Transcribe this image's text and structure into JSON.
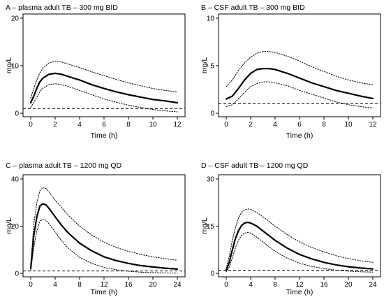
{
  "chart_data": [
    {
      "type": "line",
      "title": "A – plasma adult TB – 300 mg BID",
      "xlabel": "Time (h)",
      "ylabel": "mg/L",
      "xlim": [
        0,
        12
      ],
      "ylim": [
        0,
        20
      ],
      "xticks": [
        0,
        2,
        4,
        6,
        8,
        10,
        12
      ],
      "yticks": [
        0,
        10,
        20
      ],
      "reference_line": 1,
      "grid": false,
      "series": [
        {
          "style": "solid",
          "x": [
            0,
            0.25,
            0.5,
            0.75,
            1,
            1.5,
            2,
            2.5,
            3,
            4,
            5,
            6,
            7,
            8,
            9,
            10,
            11,
            12
          ],
          "values": [
            2.2,
            3.6,
            5.3,
            6.6,
            7.4,
            8.2,
            8.4,
            8.2,
            7.8,
            7.0,
            6.0,
            5.2,
            4.5,
            3.9,
            3.4,
            2.9,
            2.6,
            2.2
          ]
        },
        {
          "style": "dotted",
          "x": [
            0,
            0.25,
            0.5,
            0.75,
            1,
            1.5,
            2,
            2.5,
            3,
            4,
            5,
            6,
            7,
            8,
            9,
            10,
            11,
            12
          ],
          "values": [
            3.2,
            5.2,
            7.0,
            8.5,
            9.5,
            10.6,
            10.9,
            10.8,
            10.4,
            9.6,
            8.7,
            7.9,
            7.1,
            6.4,
            5.8,
            5.2,
            4.8,
            4.5
          ]
        },
        {
          "style": "dotted",
          "x": [
            0,
            0.25,
            0.5,
            0.75,
            1,
            1.5,
            2,
            2.5,
            3,
            4,
            5,
            6,
            7,
            8,
            9,
            10,
            11,
            12
          ],
          "values": [
            1.2,
            2.3,
            3.4,
            4.5,
            5.3,
            6.0,
            6.2,
            6.0,
            5.7,
            4.8,
            3.9,
            3.0,
            2.3,
            1.7,
            1.2,
            0.8,
            0.5,
            0.3
          ]
        }
      ]
    },
    {
      "type": "line",
      "title": "B – CSF adult TB – 300 mg BID",
      "xlabel": "Time (h)",
      "ylabel": "mg/L",
      "xlim": [
        0,
        12
      ],
      "ylim": [
        0,
        10
      ],
      "xticks": [
        0,
        2,
        4,
        6,
        8,
        10,
        12
      ],
      "yticks": [
        0,
        5,
        10
      ],
      "reference_line": 1,
      "grid": false,
      "series": [
        {
          "style": "solid",
          "x": [
            0,
            0.5,
            1,
            1.5,
            2,
            2.5,
            3,
            3.5,
            4,
            5,
            6,
            7,
            8,
            9,
            10,
            11,
            12
          ],
          "values": [
            1.5,
            1.8,
            2.6,
            3.5,
            4.2,
            4.6,
            4.7,
            4.7,
            4.6,
            4.2,
            3.7,
            3.2,
            2.8,
            2.4,
            2.1,
            1.8,
            1.55
          ]
        },
        {
          "style": "dotted",
          "x": [
            0,
            0.5,
            1,
            1.5,
            2,
            2.5,
            3,
            3.5,
            4,
            5,
            6,
            7,
            8,
            9,
            10,
            11,
            12
          ],
          "values": [
            2.8,
            3.5,
            4.5,
            5.3,
            5.9,
            6.3,
            6.5,
            6.5,
            6.4,
            6.0,
            5.5,
            4.9,
            4.4,
            3.9,
            3.5,
            3.2,
            3.0
          ]
        },
        {
          "style": "dotted",
          "x": [
            0,
            0.5,
            1,
            1.5,
            2,
            2.5,
            3,
            3.5,
            4,
            5,
            6,
            7,
            8,
            9,
            10,
            11,
            12
          ],
          "values": [
            0.7,
            0.9,
            1.5,
            2.2,
            2.8,
            3.1,
            3.3,
            3.3,
            3.2,
            2.9,
            2.4,
            2.0,
            1.6,
            1.2,
            0.9,
            0.7,
            0.55
          ]
        }
      ]
    },
    {
      "type": "line",
      "title": "C – plasma adult TB – 1200 mg QD",
      "xlabel": "Time (h)",
      "ylabel": "mg/L",
      "xlim": [
        0,
        24
      ],
      "ylim": [
        0,
        40
      ],
      "xticks": [
        0,
        4,
        8,
        12,
        16,
        20,
        24
      ],
      "yticks": [
        0,
        20,
        40
      ],
      "reference_line": 1,
      "grid": false,
      "series": [
        {
          "style": "solid",
          "x": [
            0,
            0.25,
            0.5,
            1,
            1.5,
            2,
            2.5,
            3,
            4,
            5,
            6,
            8,
            10,
            12,
            14,
            16,
            18,
            20,
            22,
            24
          ],
          "values": [
            2,
            9,
            16,
            24,
            28.5,
            29.5,
            29,
            27.5,
            24,
            20.5,
            17.5,
            12.8,
            9.5,
            7.0,
            5.4,
            4.2,
            3.3,
            2.7,
            2.2,
            1.8
          ]
        },
        {
          "style": "dotted",
          "x": [
            0,
            0.25,
            0.5,
            1,
            1.5,
            2,
            2.5,
            3,
            4,
            5,
            6,
            8,
            10,
            12,
            14,
            16,
            18,
            20,
            22,
            24
          ],
          "values": [
            3,
            12,
            21,
            30,
            35,
            36.3,
            36,
            34.5,
            31,
            28,
            25,
            20,
            16.2,
            13.2,
            11,
            9.3,
            8,
            7,
            6.2,
            5.5
          ]
        },
        {
          "style": "dotted",
          "x": [
            0,
            0.25,
            0.5,
            1,
            1.5,
            2,
            2.5,
            3,
            4,
            5,
            6,
            8,
            10,
            12,
            14,
            16,
            18,
            20,
            22,
            24
          ],
          "values": [
            1,
            6,
            11,
            18,
            22,
            23,
            22.5,
            21,
            17.5,
            14,
            11,
            6.8,
            4.2,
            2.5,
            1.5,
            0.9,
            0.5,
            0.3,
            0.2,
            0.1
          ]
        }
      ]
    },
    {
      "type": "line",
      "title": "D – CSF adult TB – 1200 mg QD",
      "xlabel": "Time (h)",
      "ylabel": "mg/L",
      "xlim": [
        0,
        24
      ],
      "ylim": [
        0,
        30
      ],
      "xticks": [
        0,
        4,
        8,
        12,
        16,
        20,
        24
      ],
      "yticks": [
        0,
        15,
        30
      ],
      "reference_line": 1,
      "grid": false,
      "series": [
        {
          "style": "solid",
          "x": [
            0,
            0.5,
            1,
            1.5,
            2,
            2.5,
            3,
            3.5,
            4,
            5,
            6,
            8,
            10,
            12,
            14,
            16,
            18,
            20,
            22,
            24
          ],
          "values": [
            1,
            3.5,
            7.5,
            11,
            13.5,
            15.2,
            16,
            16.2,
            16,
            15,
            13.5,
            10.5,
            8,
            6,
            4.6,
            3.5,
            2.7,
            2.1,
            1.7,
            1.4
          ]
        },
        {
          "style": "dotted",
          "x": [
            0,
            0.5,
            1,
            1.5,
            2,
            2.5,
            3,
            3.5,
            4,
            5,
            6,
            8,
            10,
            12,
            14,
            16,
            18,
            20,
            22,
            24
          ],
          "values": [
            1.5,
            5.5,
            10.5,
            14.5,
            17.5,
            19.3,
            20.2,
            20.5,
            20.3,
            19.3,
            18,
            15,
            12.3,
            10,
            8.2,
            6.8,
            5.6,
            4.7,
            4,
            3.5
          ]
        },
        {
          "style": "dotted",
          "x": [
            0,
            0.5,
            1,
            1.5,
            2,
            2.5,
            3,
            3.5,
            4,
            5,
            6,
            8,
            10,
            12,
            14,
            16,
            18,
            20,
            22,
            24
          ],
          "values": [
            0.5,
            2,
            5,
            8,
            10.5,
            12,
            12.8,
            13,
            12.8,
            11.5,
            10,
            7,
            4.8,
            3.2,
            2.2,
            1.5,
            1,
            0.7,
            0.5,
            0.4
          ]
        }
      ]
    }
  ]
}
